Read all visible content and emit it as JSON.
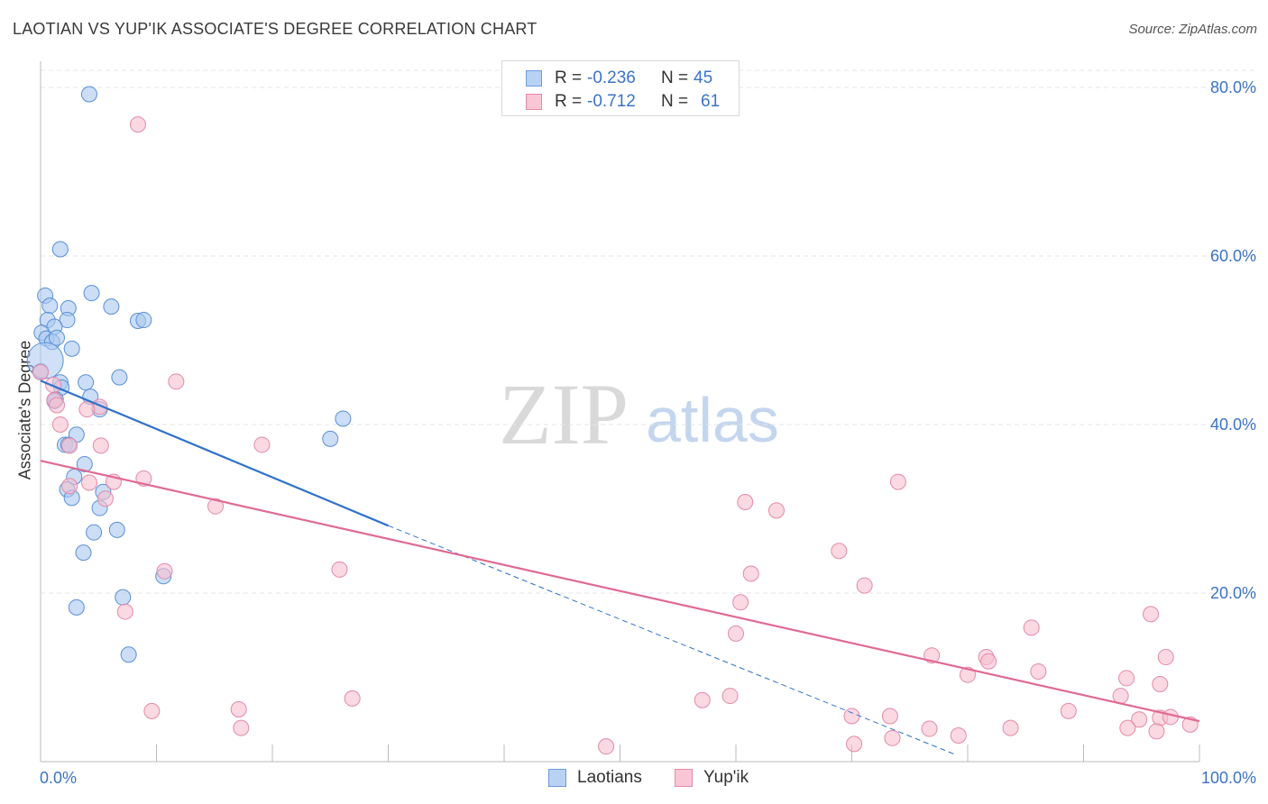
{
  "title": "LAOTIAN VS YUP'IK ASSOCIATE'S DEGREE CORRELATION CHART",
  "source": "Source: ZipAtlas.com",
  "watermark": {
    "part1": "ZIP",
    "part2": "atlas"
  },
  "legend_top": [
    {
      "r_label": "R =",
      "r_value": "-0.236",
      "n_label": "N =",
      "n_value": "45",
      "swatch_fill": "#b8d2f4",
      "swatch_border": "#6a9be0"
    },
    {
      "r_label": "R =",
      "r_value": "-0.712",
      "n_label": "N =",
      "n_value": "61",
      "swatch_fill": "#f9c6d6",
      "swatch_border": "#e88aa8"
    }
  ],
  "legend_bottom": [
    {
      "label": "Laotians",
      "swatch_fill": "#b8d2f4",
      "swatch_border": "#6a9be0"
    },
    {
      "label": "Yup'ik",
      "swatch_fill": "#f9c6d6",
      "swatch_border": "#e88aa8"
    }
  ],
  "colors": {
    "laotian_fill": "#a9c8f0",
    "laotian_stroke": "#5b8fd6",
    "laotian_line": "#2f72c9",
    "yupik_fill": "#f7bfd0",
    "yupik_stroke": "#e38aa7",
    "yupik_line": "#e06a93",
    "axis_label": "#3b73c6",
    "grid": "#e6e6e6"
  },
  "chart_data": {
    "type": "scatter",
    "title": "LAOTIAN VS YUP'IK ASSOCIATE'S DEGREE CORRELATION CHART",
    "xlabel": "",
    "ylabel": "Associate's Degree",
    "xlim": [
      0,
      100
    ],
    "ylim": [
      0,
      80
    ],
    "x_tick_labels": [
      {
        "value": 0,
        "label": "0.0%"
      },
      {
        "value": 100,
        "label": "100.0%"
      }
    ],
    "y_tick_labels": [
      {
        "value": 20,
        "label": "20.0%"
      },
      {
        "value": 40,
        "label": "40.0%"
      },
      {
        "value": 60,
        "label": "60.0%"
      },
      {
        "value": 80,
        "label": "80.0%"
      }
    ],
    "grid": true,
    "series": [
      {
        "name": "Laotians",
        "r": -0.236,
        "n": 45,
        "trend": {
          "x0": 0,
          "y0": 45.2,
          "x1": 30,
          "y1": 28.0,
          "dashed_to_x": 79,
          "dashed_to_y": 0.8
        },
        "points": [
          [
            4.2,
            79.2
          ],
          [
            1.7,
            60.8
          ],
          [
            0.4,
            55.3
          ],
          [
            0.8,
            54.1
          ],
          [
            4.4,
            55.6
          ],
          [
            6.1,
            54.0
          ],
          [
            2.4,
            53.8
          ],
          [
            0.6,
            52.4
          ],
          [
            2.3,
            52.4
          ],
          [
            8.4,
            52.3
          ],
          [
            8.9,
            52.4
          ],
          [
            1.2,
            51.6
          ],
          [
            0.1,
            50.9
          ],
          [
            0.5,
            50.2
          ],
          [
            1.0,
            49.8
          ],
          [
            1.4,
            50.3
          ],
          [
            2.7,
            49.0
          ],
          [
            0,
            46.3
          ],
          [
            6.8,
            45.6
          ],
          [
            1.7,
            45.0
          ],
          [
            3.9,
            45.0
          ],
          [
            1.8,
            44.4
          ],
          [
            1.3,
            43.0
          ],
          [
            4.3,
            43.3
          ],
          [
            5.1,
            41.8
          ],
          [
            26.1,
            40.7
          ],
          [
            3.1,
            38.8
          ],
          [
            2.1,
            37.6
          ],
          [
            2.4,
            37.6
          ],
          [
            25.0,
            38.3
          ],
          [
            3.8,
            35.3
          ],
          [
            2.9,
            33.8
          ],
          [
            2.3,
            32.3
          ],
          [
            5.4,
            32.0
          ],
          [
            2.7,
            31.3
          ],
          [
            5.1,
            30.1
          ],
          [
            4.6,
            27.2
          ],
          [
            6.6,
            27.5
          ],
          [
            3.7,
            24.8
          ],
          [
            10.6,
            22.0
          ],
          [
            7.1,
            19.5
          ],
          [
            3.1,
            18.3
          ],
          [
            7.6,
            12.7
          ],
          [
            1.2,
            42.8
          ],
          [
            0.4,
            47.6
          ]
        ]
      },
      {
        "name": "Yup'ik",
        "r": -0.712,
        "n": 61,
        "trend": {
          "x0": 0,
          "y0": 35.7,
          "x1": 100,
          "y1": 4.8
        },
        "points": [
          [
            8.4,
            75.6
          ],
          [
            0,
            46.2
          ],
          [
            11.7,
            45.1
          ],
          [
            1.2,
            42.9
          ],
          [
            1.4,
            42.3
          ],
          [
            5.1,
            42.1
          ],
          [
            4.0,
            41.8
          ],
          [
            1.7,
            40.0
          ],
          [
            1.1,
            44.7
          ],
          [
            2.5,
            37.5
          ],
          [
            5.2,
            37.5
          ],
          [
            19.1,
            37.6
          ],
          [
            8.9,
            33.6
          ],
          [
            6.3,
            33.2
          ],
          [
            2.5,
            32.7
          ],
          [
            4.2,
            33.1
          ],
          [
            5.6,
            31.2
          ],
          [
            15.1,
            30.3
          ],
          [
            74.0,
            33.2
          ],
          [
            60.8,
            30.8
          ],
          [
            63.5,
            29.8
          ],
          [
            68.9,
            25.0
          ],
          [
            10.7,
            22.6
          ],
          [
            25.8,
            22.8
          ],
          [
            61.3,
            22.3
          ],
          [
            71.1,
            20.9
          ],
          [
            60.4,
            18.9
          ],
          [
            7.3,
            17.8
          ],
          [
            95.8,
            17.5
          ],
          [
            85.5,
            15.9
          ],
          [
            60.0,
            15.2
          ],
          [
            76.9,
            12.6
          ],
          [
            81.6,
            12.4
          ],
          [
            81.8,
            11.9
          ],
          [
            97.1,
            12.4
          ],
          [
            80.0,
            10.3
          ],
          [
            86.1,
            10.7
          ],
          [
            93.7,
            9.9
          ],
          [
            96.6,
            9.2
          ],
          [
            93.2,
            7.8
          ],
          [
            57.1,
            7.3
          ],
          [
            59.5,
            7.8
          ],
          [
            26.9,
            7.5
          ],
          [
            9.6,
            6.0
          ],
          [
            17.1,
            6.2
          ],
          [
            70.0,
            5.4
          ],
          [
            73.3,
            5.4
          ],
          [
            88.7,
            6.0
          ],
          [
            94.8,
            5.0
          ],
          [
            96.6,
            5.2
          ],
          [
            97.5,
            5.3
          ],
          [
            99.2,
            4.4
          ],
          [
            17.3,
            4.0
          ],
          [
            76.7,
            3.9
          ],
          [
            83.7,
            4.0
          ],
          [
            93.8,
            4.0
          ],
          [
            96.3,
            3.6
          ],
          [
            79.2,
            3.1
          ],
          [
            73.5,
            2.8
          ],
          [
            70.2,
            2.1
          ],
          [
            48.8,
            1.8
          ]
        ]
      }
    ]
  }
}
